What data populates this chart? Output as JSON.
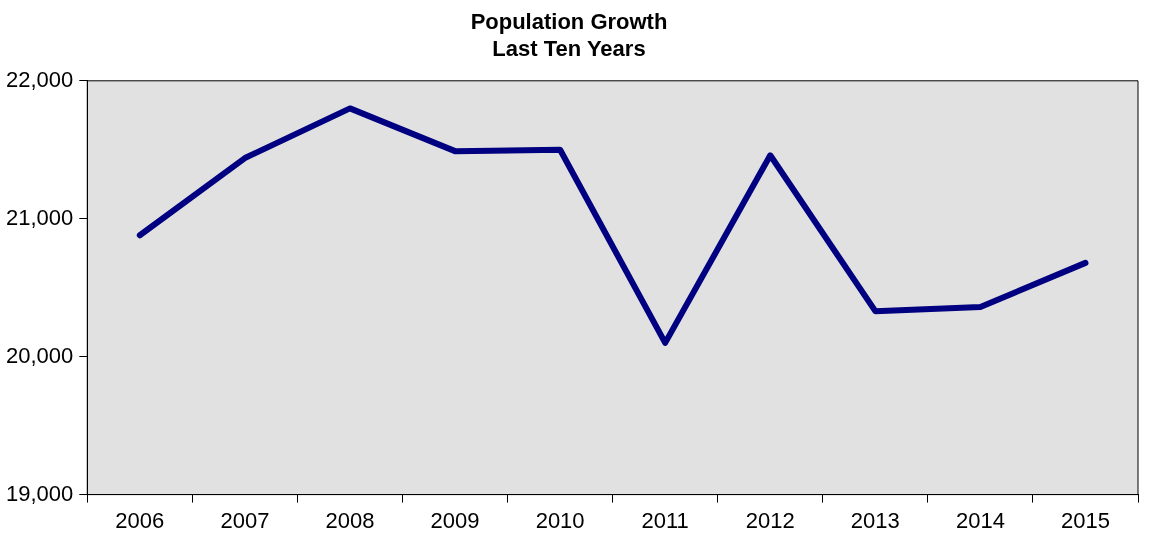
{
  "chart_data": {
    "type": "line",
    "title": "Population Growth",
    "subtitle": "Last Ten Years",
    "categories": [
      "2006",
      "2007",
      "2008",
      "2009",
      "2010",
      "2011",
      "2012",
      "2013",
      "2014",
      "2015"
    ],
    "series": [
      {
        "color": "#000080",
        "values": [
          20880,
          21440,
          21800,
          21490,
          21500,
          20100,
          21460,
          20330,
          20360,
          20680
        ]
      }
    ],
    "ylim": [
      19000,
      22000
    ],
    "yticks": [
      {
        "value": 19000,
        "label": "19,000"
      },
      {
        "value": 20000,
        "label": "20,000"
      },
      {
        "value": 21000,
        "label": "21,000"
      },
      {
        "value": 22000,
        "label": "22,000"
      }
    ],
    "grid": false,
    "legend": false,
    "marker": "none",
    "line_style": "solid"
  }
}
